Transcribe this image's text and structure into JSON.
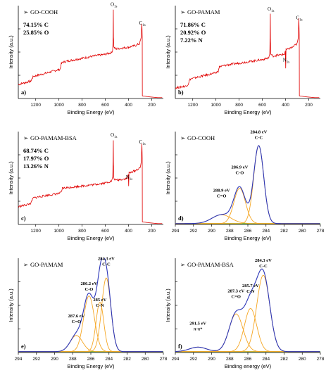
{
  "chart_data": [
    {
      "panel": "a)",
      "type": "line",
      "title": "GO-COOH",
      "composition": [
        "74.15% C",
        "25.85% O"
      ],
      "xlabel": "Binding Energy (eV)",
      "ylabel": "Intensity (a.u.)",
      "xlim": [
        1350,
        100
      ],
      "x_reversed": true,
      "xticks": [
        1200,
        1000,
        800,
        600,
        400,
        200
      ],
      "y_tick_labels": false,
      "annotations": [
        {
          "text": "O",
          "sub": "1s",
          "x": 531,
          "y": 103
        },
        {
          "text": "C",
          "sub": "1s",
          "x": 284.8,
          "y": 82
        }
      ],
      "series": [
        {
          "color": "#e00000",
          "points": [
            [
              1350,
              16
            ],
            [
              1260,
              19
            ],
            [
              1240,
              20
            ],
            [
              1230,
              23
            ],
            [
              1220,
              25
            ],
            [
              1100,
              29
            ],
            [
              1020,
              32
            ],
            [
              990,
              33
            ],
            [
              980,
              39
            ],
            [
              970,
              41
            ],
            [
              900,
              43
            ],
            [
              700,
              48
            ],
            [
              600,
              50
            ],
            [
              545,
              52
            ],
            [
              537,
              55
            ],
            [
              533,
              70
            ],
            [
              531,
              100
            ],
            [
              530,
              70
            ],
            [
              527,
              58
            ],
            [
              510,
              56
            ],
            [
              400,
              58
            ],
            [
              340,
              60
            ],
            [
              305,
              62
            ],
            [
              292,
              68
            ],
            [
              287,
              80
            ],
            [
              285,
              85
            ],
            [
              284,
              80
            ],
            [
              282,
              70
            ],
            [
              281,
              3
            ],
            [
              230,
              2
            ],
            [
              150,
              1
            ],
            [
              110,
              1
            ]
          ]
        }
      ]
    },
    {
      "panel": "b)",
      "type": "line",
      "title": "GO-PAMAM",
      "composition": [
        "71.86% C",
        "20.92% O",
        "7.22% N"
      ],
      "xlabel": "Binding Energy (eV)",
      "ylabel": "Intensity (a.u.)",
      "xlim": [
        1350,
        100
      ],
      "x_reversed": true,
      "xticks": [
        1200,
        1000,
        800,
        600,
        400,
        200
      ],
      "y_tick_labels": false,
      "annotations": [
        {
          "text": "O",
          "sub": "1s",
          "x": 531,
          "y": 98
        },
        {
          "text": "C",
          "sub": "1s",
          "x": 285,
          "y": 88
        },
        {
          "text": "N",
          "sub": "1s",
          "x": 399,
          "y": 40
        }
      ],
      "series": [
        {
          "color": "#e00000",
          "points": [
            [
              1350,
              12
            ],
            [
              1260,
              14
            ],
            [
              1240,
              16
            ],
            [
              1230,
              20
            ],
            [
              1220,
              22
            ],
            [
              1100,
              26
            ],
            [
              1000,
              29
            ],
            [
              980,
              31
            ],
            [
              970,
              36
            ],
            [
              900,
              38
            ],
            [
              700,
              42
            ],
            [
              600,
              44
            ],
            [
              545,
              46
            ],
            [
              537,
              50
            ],
            [
              533,
              68
            ],
            [
              531,
              95
            ],
            [
              530,
              65
            ],
            [
              527,
              50
            ],
            [
              510,
              48
            ],
            [
              410,
              50
            ],
            [
              402,
              54
            ],
            [
              399,
              34
            ],
            [
              396,
              55
            ],
            [
              340,
              58
            ],
            [
              300,
              62
            ],
            [
              291,
              68
            ],
            [
              287,
              84
            ],
            [
              285,
              90
            ],
            [
              284,
              84
            ],
            [
              282,
              72
            ],
            [
              281,
              3
            ],
            [
              230,
              2
            ],
            [
              150,
              1
            ],
            [
              110,
              1
            ]
          ]
        }
      ]
    },
    {
      "panel": "c)",
      "type": "line",
      "title": "GO-PAMAM-BSA",
      "composition": [
        "68.74% C",
        "17.97% O",
        "13.26% N"
      ],
      "xlabel": "Binding Energy (eV)",
      "ylabel": "Intensity (a.u.)",
      "xlim": [
        1350,
        100
      ],
      "x_reversed": true,
      "xticks": [
        1200,
        1000,
        800,
        600,
        400,
        200
      ],
      "y_tick_labels": false,
      "annotations": [
        {
          "text": "O",
          "sub": "1s",
          "x": 531,
          "y": 98
        },
        {
          "text": "C",
          "sub": "1s",
          "x": 284.8,
          "y": 90
        },
        {
          "text": "N",
          "sub": "1s",
          "x": 399,
          "y": 50
        }
      ],
      "series": [
        {
          "color": "#e00000",
          "points": [
            [
              1350,
              20
            ],
            [
              1260,
              23
            ],
            [
              1240,
              24
            ],
            [
              1230,
              28
            ],
            [
              1220,
              30
            ],
            [
              1100,
              33
            ],
            [
              1000,
              35
            ],
            [
              980,
              36
            ],
            [
              970,
              41
            ],
            [
              900,
              42
            ],
            [
              700,
              45
            ],
            [
              600,
              47
            ],
            [
              545,
              49
            ],
            [
              537,
              53
            ],
            [
              533,
              72
            ],
            [
              531,
              95
            ],
            [
              530,
              68
            ],
            [
              527,
              52
            ],
            [
              510,
              50
            ],
            [
              410,
              52
            ],
            [
              402,
              57
            ],
            [
              399,
              44
            ],
            [
              396,
              58
            ],
            [
              340,
              61
            ],
            [
              300,
              64
            ],
            [
              291,
              70
            ],
            [
              287,
              84
            ],
            [
              285,
              92
            ],
            [
              284,
              86
            ],
            [
              282,
              75
            ],
            [
              281,
              3
            ],
            [
              230,
              2
            ],
            [
              150,
              1
            ],
            [
              110,
              1
            ]
          ]
        }
      ]
    },
    {
      "panel": "d)",
      "type": "line",
      "title": "GO-COOH",
      "xlabel": "Binding Energy (eV)",
      "ylabel": "Intensity (a.u.)",
      "xlim": [
        294,
        278
      ],
      "x_reversed": true,
      "xticks": [
        294,
        292,
        290,
        288,
        286,
        284,
        282,
        280,
        278
      ],
      "y_tick_labels": false,
      "annotations": [
        {
          "text": "284.8 eV",
          "text2": "C-C",
          "x": 284.8,
          "y": 96
        },
        {
          "text": "286.9 eV",
          "text2": "C-O",
          "x": 286.9,
          "y": 56
        },
        {
          "text": "288.9 eV",
          "text2": "C=O",
          "x": 288.9,
          "y": 30
        }
      ],
      "peaks": [
        {
          "center": 284.8,
          "height": 88,
          "fwhm": 1.3,
          "color": "#f5a623"
        },
        {
          "center": 286.9,
          "height": 40,
          "fwhm": 1.5,
          "color": "#f5a623"
        },
        {
          "center": 288.9,
          "height": 10,
          "fwhm": 2.5,
          "color": "#f5a623"
        }
      ],
      "baseline": 1,
      "envelope_color": "#2b35b8",
      "background_color": "#2fc12f"
    },
    {
      "panel": "e)",
      "type": "line",
      "title": "GO-PAMAM",
      "xlabel": "Binding Energy (eV)",
      "ylabel": "Intensity (a.u.)",
      "xlim": [
        294,
        278
      ],
      "x_reversed": true,
      "xticks": [
        294,
        292,
        290,
        288,
        286,
        284,
        282,
        280,
        278
      ],
      "y_tick_labels": false,
      "annotations": [
        {
          "text": "284.3 eV",
          "text2": "C-C",
          "x": 284.3,
          "y": 96
        },
        {
          "text": "286.2 eV",
          "text2": "C-O",
          "x": 286.2,
          "y": 68
        },
        {
          "text": "285 eV",
          "text2": "C-N",
          "x": 285.0,
          "y": 50
        },
        {
          "text": "287.6 eV",
          "text2": "C=O",
          "x": 287.6,
          "y": 32
        }
      ],
      "peaks": [
        {
          "center": 284.3,
          "height": 82,
          "fwhm": 1.2,
          "color": "#f5a623"
        },
        {
          "center": 285.0,
          "height": 55,
          "fwhm": 1.0,
          "color": "#f5a623"
        },
        {
          "center": 286.2,
          "height": 62,
          "fwhm": 1.4,
          "color": "#f5a623"
        },
        {
          "center": 287.6,
          "height": 18,
          "fwhm": 1.6,
          "color": "#f5a623"
        }
      ],
      "baseline": 1,
      "envelope_color": "#2b35b8",
      "background_color": "#2fc12f"
    },
    {
      "panel": "f)",
      "type": "line",
      "title": "GO-PAMAM-BSA",
      "xlabel": "Binding energy (eV)",
      "ylabel": "Intensity (a.u.)",
      "xlim": [
        294,
        278
      ],
      "x_reversed": true,
      "xticks": [
        294,
        292,
        290,
        288,
        286,
        284,
        282,
        280,
        278
      ],
      "y_tick_labels": false,
      "annotations": [
        {
          "text": "284.3 eV",
          "text2": "C-C",
          "x": 284.3,
          "y": 94
        },
        {
          "text": "285.7 eV",
          "text2": "C-N",
          "x": 285.7,
          "y": 66
        },
        {
          "text": "287.3 eV",
          "text2": "C=O",
          "x": 287.3,
          "y": 60
        },
        {
          "text": "291.5 eV",
          "text2": "π-π*",
          "x": 291.5,
          "y": 24
        }
      ],
      "peaks": [
        {
          "center": 284.3,
          "height": 85,
          "fwhm": 1.7,
          "color": "#f5a623"
        },
        {
          "center": 285.7,
          "height": 48,
          "fwhm": 1.6,
          "color": "#f5a623"
        },
        {
          "center": 287.3,
          "height": 42,
          "fwhm": 1.8,
          "color": "#f5a623"
        },
        {
          "center": 291.5,
          "height": 5,
          "fwhm": 2.2,
          "color": "#f5a623"
        }
      ],
      "baseline": 1,
      "envelope_color": "#2b35b8",
      "background_color": "#2fc12f"
    }
  ]
}
